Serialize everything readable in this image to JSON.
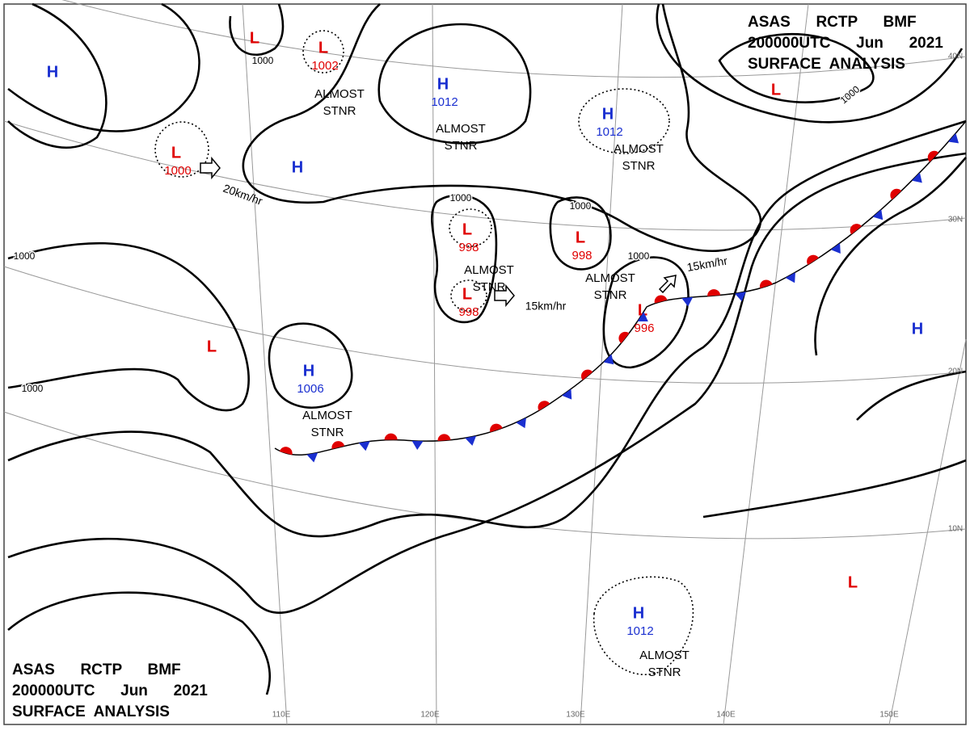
{
  "header": {
    "lines": [
      "ASAS      RCTP      BMF",
      "200000UTC      Jun      2021",
      "SURFACE  ANALYSIS"
    ]
  },
  "centers": [
    {
      "type": "H"
    },
    {
      "type": "L"
    },
    {
      "type": "L",
      "value": 1002
    },
    {
      "type": "H",
      "value": 1012
    },
    {
      "type": "H",
      "value": 1012
    },
    {
      "type": "L"
    },
    {
      "type": "L",
      "value": 1000
    },
    {
      "type": "H"
    },
    {
      "type": "L",
      "value": 998
    },
    {
      "type": "L",
      "value": 998
    },
    {
      "type": "L",
      "value": 998
    },
    {
      "type": "L",
      "value": 996
    },
    {
      "type": "H"
    },
    {
      "type": "L"
    },
    {
      "type": "H",
      "value": 1006
    },
    {
      "type": "L"
    },
    {
      "type": "H",
      "value": 1012
    }
  ],
  "notes": [
    [
      "ALMOST",
      "STNR"
    ],
    [
      "ALMOST",
      "STNR"
    ],
    [
      "ALMOST",
      "STNR"
    ],
    [
      "ALMOST",
      "STNR"
    ],
    [
      "ALMOST",
      "STNR"
    ],
    [
      "ALMOST",
      "STNR"
    ],
    [
      "ALMOST",
      "STNR"
    ]
  ],
  "motions": [
    "20km/hr",
    "15km/hr",
    "15km/hr"
  ],
  "isobar_labels": [
    1000,
    1000,
    1000,
    1000,
    1000,
    1000,
    1000
  ],
  "lat_labels": [
    "40N",
    "30N",
    "20N",
    "10N"
  ],
  "lon_labels": [
    "110E",
    "120E",
    "130E",
    "140E",
    "150E"
  ]
}
